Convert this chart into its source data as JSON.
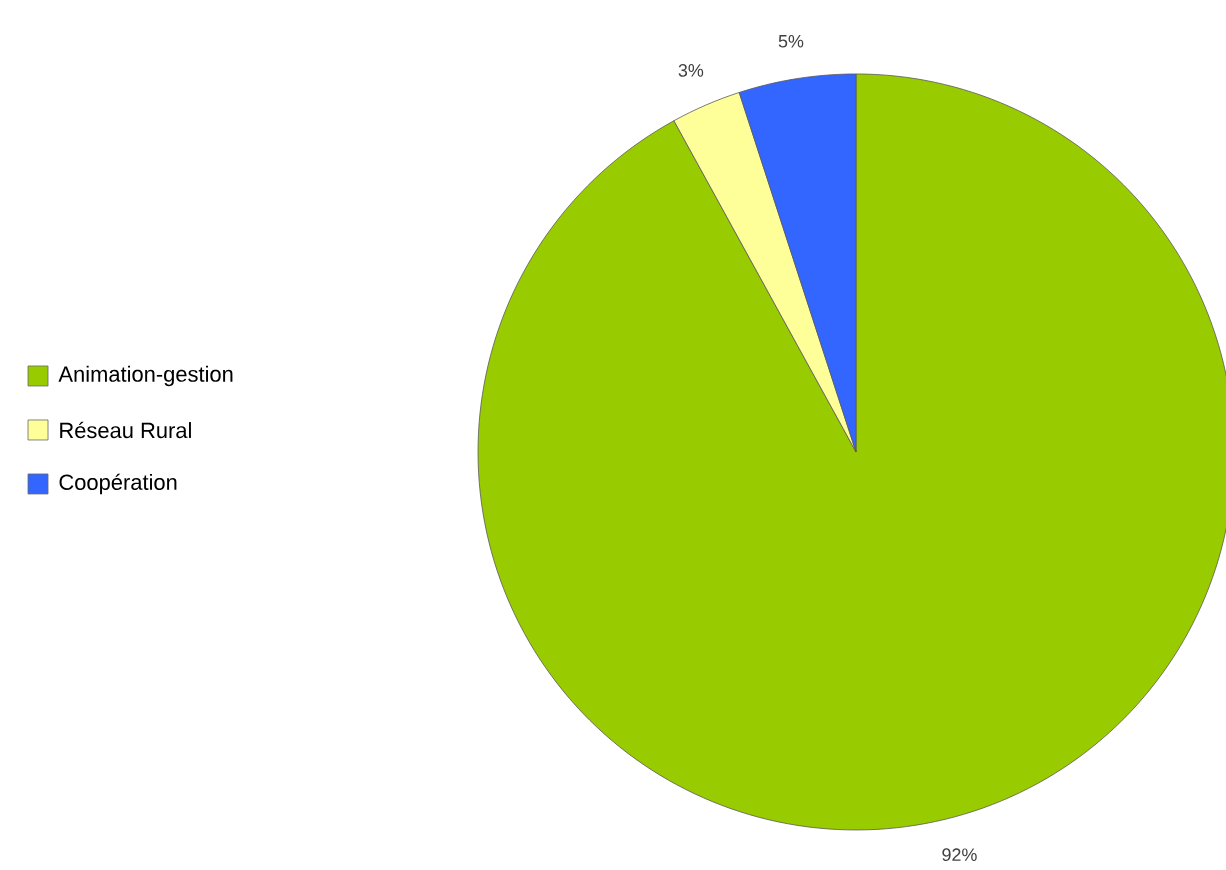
{
  "chart_data": {
    "type": "pie",
    "categories": [
      "Animation-gestion",
      "Réseau Rural",
      "Coopération"
    ],
    "values": [
      92,
      3,
      5
    ],
    "value_labels": [
      "92%",
      "3%",
      "5%"
    ],
    "colors": [
      "#99cc00",
      "#ffff99",
      "#3366ff"
    ],
    "legend": "left"
  }
}
